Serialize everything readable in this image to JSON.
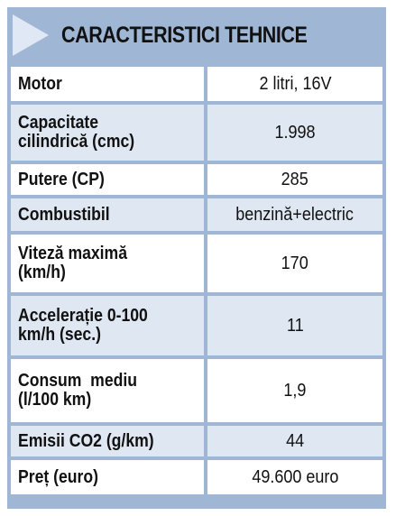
{
  "title": "CARACTERISTICI TEHNICE",
  "rows": [
    {
      "label_lines": [
        "Motor"
      ],
      "value": "2 litri, 16V"
    },
    {
      "label_lines": [
        "Capacitate",
        "cilindrică (cmc)"
      ],
      "value": "1.998"
    },
    {
      "label_lines": [
        "Putere (CP)"
      ],
      "value": "285"
    },
    {
      "label_lines": [
        "Combustibil"
      ],
      "value": "benzină+electric"
    },
    {
      "label_lines": [
        "Viteză maximă",
        "(km/h)"
      ],
      "value": "170"
    },
    {
      "label_lines": [
        "Accelerație 0-100",
        "km/h (sec.)"
      ],
      "value": "11"
    },
    {
      "label_lines": [
        "Consum  mediu",
        "(l/100 km)"
      ],
      "value": "1,9"
    },
    {
      "label_lines": [
        "Emisii CO2 (g/km)"
      ],
      "value": "44"
    },
    {
      "label_lines": [
        "Preț (euro)"
      ],
      "value": "49.600 euro"
    }
  ],
  "colors": {
    "frame": "#9fb6d4",
    "row_light": "#ffffff",
    "row_tint": "#dfe7f2",
    "arrow": "#dfe8f4"
  }
}
